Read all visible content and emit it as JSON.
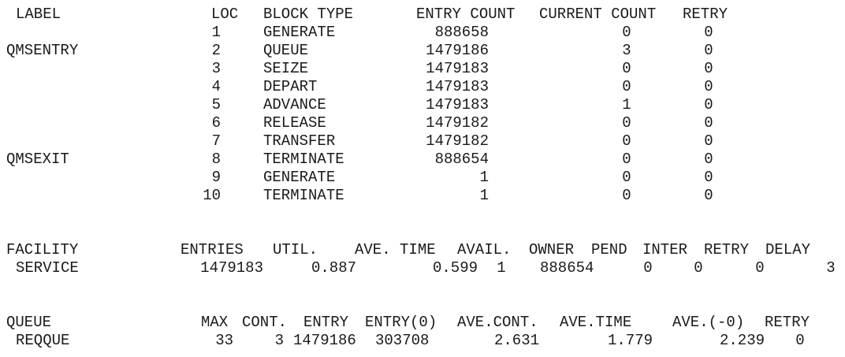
{
  "blocks": {
    "headers": {
      "label": "LABEL",
      "loc": "LOC",
      "block_type": "BLOCK TYPE",
      "entry_count": "ENTRY COUNT",
      "current_count": "CURRENT COUNT",
      "retry": "RETRY"
    },
    "rows": [
      {
        "label": "",
        "loc": "1",
        "block_type": "GENERATE",
        "entry_count": "888658",
        "current_count": "0",
        "retry": "0"
      },
      {
        "label": "QMSENTRY",
        "loc": "2",
        "block_type": "QUEUE",
        "entry_count": "1479186",
        "current_count": "3",
        "retry": "0"
      },
      {
        "label": "",
        "loc": "3",
        "block_type": "SEIZE",
        "entry_count": "1479183",
        "current_count": "0",
        "retry": "0"
      },
      {
        "label": "",
        "loc": "4",
        "block_type": "DEPART",
        "entry_count": "1479183",
        "current_count": "0",
        "retry": "0"
      },
      {
        "label": "",
        "loc": "5",
        "block_type": "ADVANCE",
        "entry_count": "1479183",
        "current_count": "1",
        "retry": "0"
      },
      {
        "label": "",
        "loc": "6",
        "block_type": "RELEASE",
        "entry_count": "1479182",
        "current_count": "0",
        "retry": "0"
      },
      {
        "label": "",
        "loc": "7",
        "block_type": "TRANSFER",
        "entry_count": "1479182",
        "current_count": "0",
        "retry": "0"
      },
      {
        "label": "QMSEXIT",
        "loc": "8",
        "block_type": "TERMINATE",
        "entry_count": "888654",
        "current_count": "0",
        "retry": "0"
      },
      {
        "label": "",
        "loc": "9",
        "block_type": "GENERATE",
        "entry_count": "1",
        "current_count": "0",
        "retry": "0"
      },
      {
        "label": "",
        "loc": "10",
        "block_type": "TERMINATE",
        "entry_count": "1",
        "current_count": "0",
        "retry": "0"
      }
    ]
  },
  "facility": {
    "headers": {
      "facility": "FACILITY",
      "entries": "ENTRIES",
      "util": "UTIL.",
      "ave_time": "AVE. TIME",
      "avail": "AVAIL.",
      "owner": "OWNER",
      "pend": "PEND",
      "inter": "INTER",
      "retry": "RETRY",
      "delay": "DELAY"
    },
    "rows": [
      {
        "name": "SERVICE",
        "entries": "1479183",
        "util": "0.887",
        "ave_time": "0.599",
        "avail": "1",
        "owner": "888654",
        "pend": "0",
        "inter": "0",
        "retry": "0",
        "delay": "3"
      }
    ]
  },
  "queue": {
    "headers": {
      "queue": "QUEUE",
      "max": "MAX",
      "cont": "CONT.",
      "entry": "ENTRY",
      "entry0": "ENTRY(0)",
      "ave_cont": "AVE.CONT.",
      "ave_time": "AVE.TIME",
      "ave_0": "AVE.(-0)",
      "retry": "RETRY"
    },
    "rows": [
      {
        "name": "REQQUE",
        "max": "33",
        "cont": "3",
        "entry": "1479186",
        "entry0": "303708",
        "ave_cont": "2.631",
        "ave_time": "1.779",
        "ave_0": "2.239",
        "retry": "0"
      }
    ]
  }
}
